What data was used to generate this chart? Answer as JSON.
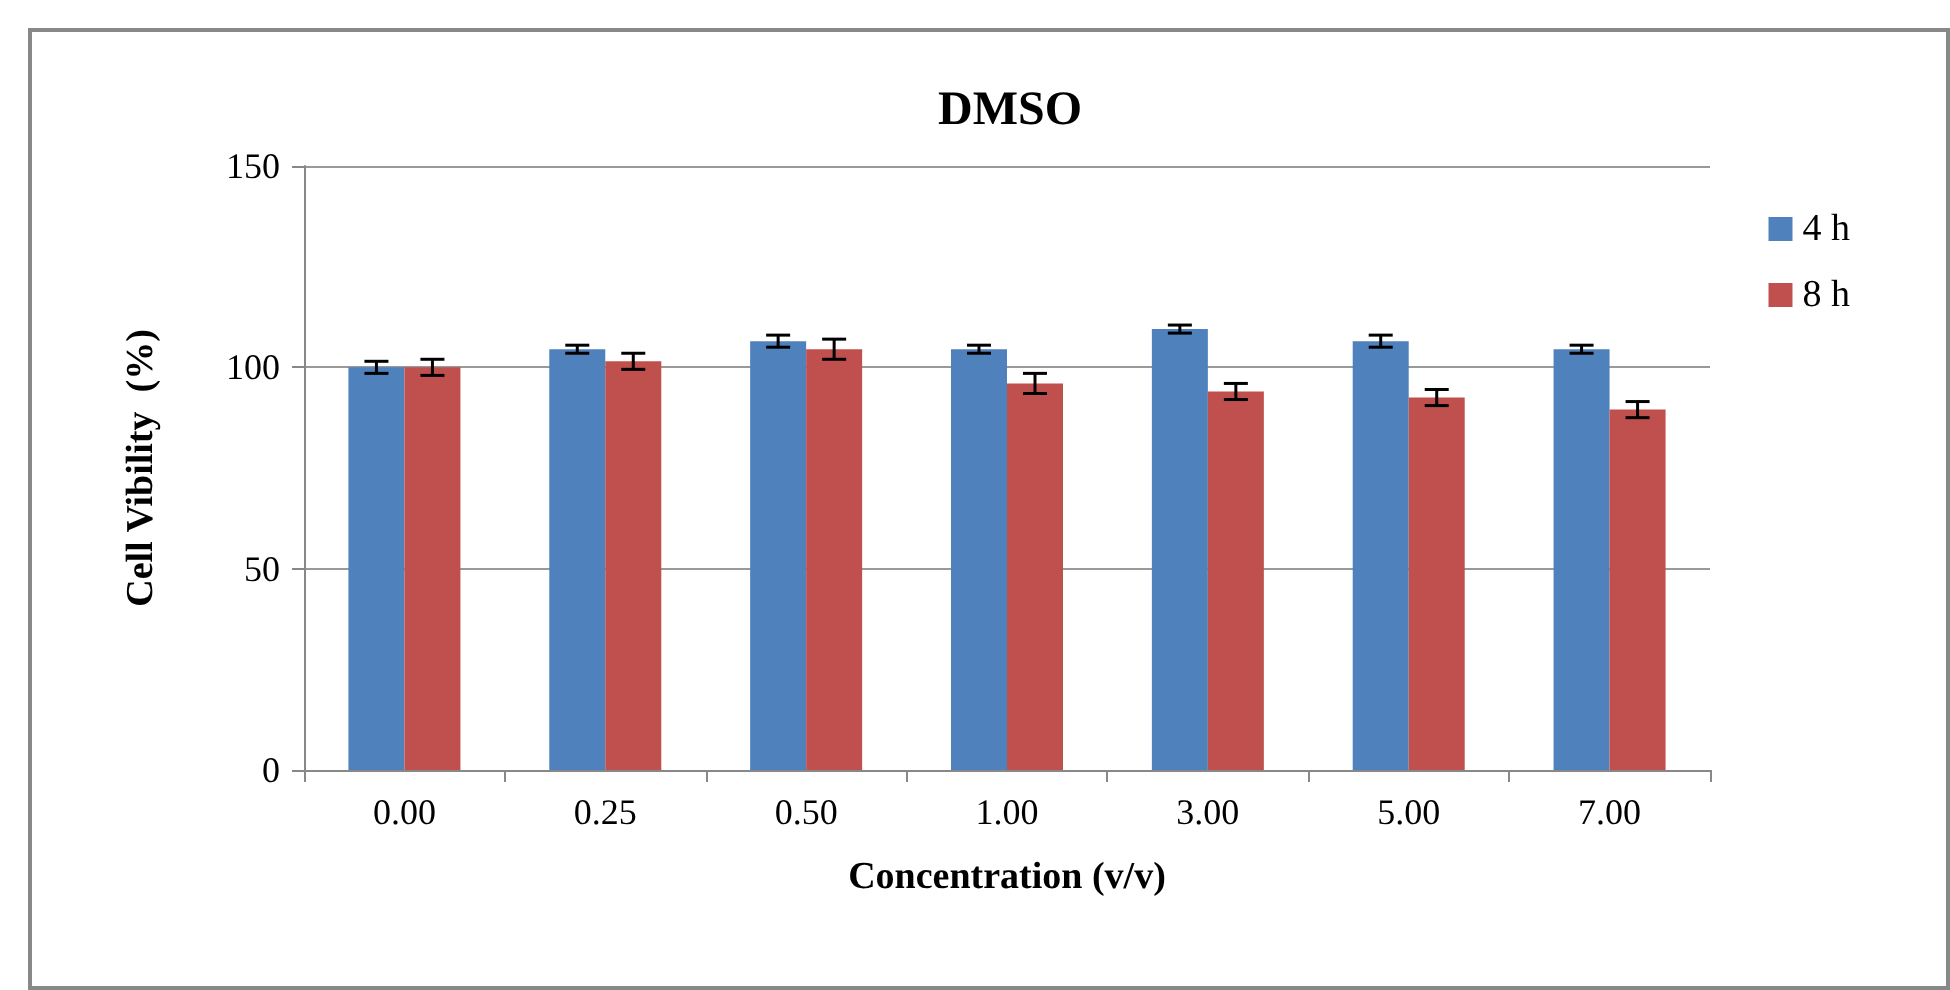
{
  "chart_data": {
    "type": "bar",
    "title": "DMSO",
    "xlabel": "Concentration (v/v)",
    "ylabel": "Cell Vibility  (%)",
    "categories": [
      "0.00",
      "0.25",
      "0.50",
      "1.00",
      "3.00",
      "5.00",
      "7.00"
    ],
    "series": [
      {
        "name": "4 h",
        "color": "#4f81bd",
        "values": [
          100,
          104.5,
          106.5,
          104.5,
          109.5,
          106.5,
          104.5
        ],
        "errors": [
          1.5,
          1,
          1.5,
          1,
          1,
          1.5,
          1
        ]
      },
      {
        "name": "8 h",
        "color": "#c0504d",
        "values": [
          100,
          101.5,
          104.5,
          96,
          94,
          92.5,
          89.5
        ],
        "errors": [
          2,
          2,
          2.5,
          2.5,
          2,
          2,
          2
        ]
      }
    ],
    "ylim": [
      0,
      150
    ],
    "yticks": [
      0,
      50,
      100,
      150
    ],
    "grid": "y",
    "legend": "top right"
  }
}
